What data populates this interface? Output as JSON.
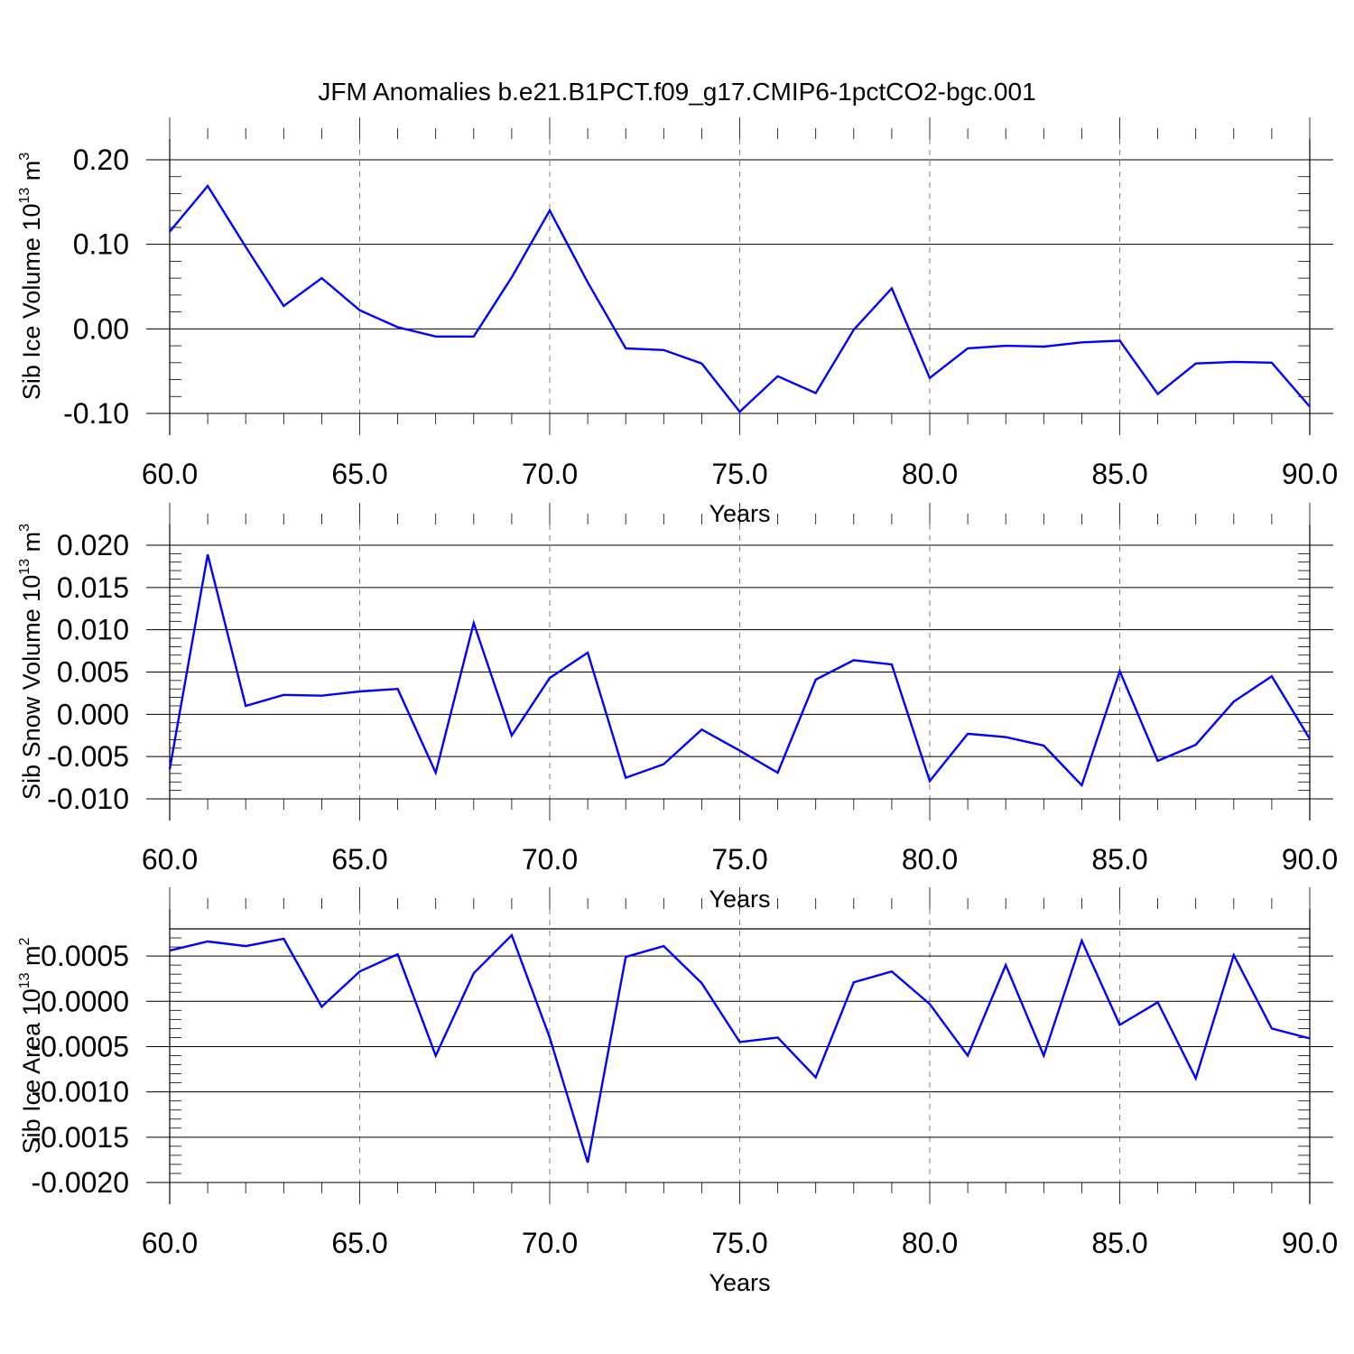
{
  "page": {
    "title": "JFM Anomalies b.e21.B1PCT.f09_g17.CMIP6-1pctCO2-bgc.001"
  },
  "colors": {
    "line": "#0000ff",
    "axis": "#000000",
    "grid": "#808080"
  },
  "chart_data": [
    {
      "type": "line",
      "title": "JFM Anomalies b.e21.B1PCT.f09_g17.CMIP6-1pctCO2-bgc.001",
      "xlabel": "Years",
      "ylabel": {
        "prefix": "Sib Ice Volume 10",
        "exp": "13",
        "unit": " m",
        "unit_exp": "3"
      },
      "xlim": [
        60,
        90
      ],
      "ylim": [
        -0.1,
        0.2
      ],
      "xticks": [
        60,
        65,
        70,
        75,
        80,
        85,
        90
      ],
      "xtick_labels": [
        "60.0",
        "65.0",
        "70.0",
        "75.0",
        "80.0",
        "85.0",
        "90.0"
      ],
      "yticks": [
        -0.1,
        0.0,
        0.1,
        0.2
      ],
      "ytick_labels": [
        "-0.10",
        "0.00",
        "0.10",
        "0.20"
      ],
      "grid": "vertical dashed at major x ticks",
      "series": [
        {
          "x": [
            60,
            61,
            62,
            63,
            64,
            65,
            66,
            67,
            68,
            69,
            70,
            71,
            72,
            73,
            74,
            75,
            76,
            77,
            78,
            79,
            80,
            81,
            82,
            83,
            84,
            85,
            86,
            87,
            88,
            89,
            90
          ],
          "values": [
            0.115,
            0.169,
            0.097,
            0.027,
            0.06,
            0.022,
            0.002,
            -0.009,
            -0.009,
            0.061,
            0.14,
            0.055,
            -0.023,
            -0.025,
            -0.041,
            -0.098,
            -0.056,
            -0.076,
            -0.001,
            0.048,
            -0.058,
            -0.023,
            -0.02,
            -0.021,
            -0.016,
            -0.014,
            -0.077,
            -0.041,
            -0.039,
            -0.04,
            -0.092
          ]
        }
      ]
    },
    {
      "type": "line",
      "xlabel": "Years",
      "ylabel": {
        "prefix": "Sib Snow Volume 10",
        "exp": "13",
        "unit": " m",
        "unit_exp": "3"
      },
      "xlim": [
        60,
        90
      ],
      "ylim": [
        -0.01,
        0.02
      ],
      "xticks": [
        60,
        65,
        70,
        75,
        80,
        85,
        90
      ],
      "xtick_labels": [
        "60.0",
        "65.0",
        "70.0",
        "75.0",
        "80.0",
        "85.0",
        "90.0"
      ],
      "yticks": [
        -0.01,
        -0.005,
        0.0,
        0.005,
        0.01,
        0.015,
        0.02
      ],
      "ytick_labels": [
        "-0.010",
        "-0.005",
        "0.000",
        "0.005",
        "0.010",
        "0.015",
        "0.020"
      ],
      "grid": "vertical dashed at major x ticks",
      "series": [
        {
          "x": [
            60,
            61,
            62,
            63,
            64,
            65,
            66,
            67,
            68,
            69,
            70,
            71,
            72,
            73,
            74,
            75,
            76,
            77,
            78,
            79,
            80,
            81,
            82,
            83,
            84,
            85,
            86,
            87,
            88,
            89,
            90
          ],
          "values": [
            -0.0065,
            0.0189,
            0.001,
            0.0023,
            0.0022,
            0.0027,
            0.003,
            -0.0069,
            0.0108,
            -0.0025,
            0.0043,
            0.0073,
            -0.0075,
            -0.0059,
            -0.0018,
            -0.0043,
            -0.0069,
            0.0041,
            0.0064,
            0.0059,
            -0.0079,
            -0.0023,
            -0.0027,
            -0.0037,
            -0.0084,
            0.0051,
            -0.0055,
            -0.0036,
            0.0015,
            0.0045,
            -0.0029
          ]
        }
      ]
    },
    {
      "type": "line",
      "xlabel": "Years",
      "ylabel": {
        "prefix": "Sib Ice Area 10",
        "exp": "13",
        "unit": " m",
        "unit_exp": "2"
      },
      "xlim": [
        60,
        90
      ],
      "ylim": [
        -0.002,
        0.0008
      ],
      "xticks": [
        60,
        65,
        70,
        75,
        80,
        85,
        90
      ],
      "xtick_labels": [
        "60.0",
        "65.0",
        "70.0",
        "75.0",
        "80.0",
        "85.0",
        "90.0"
      ],
      "yticks": [
        -0.002,
        -0.0015,
        -0.001,
        -0.0005,
        0.0,
        0.0005
      ],
      "ytick_labels": [
        "-0.0020",
        "-0.0015",
        "-0.0010",
        "-0.0005",
        "0.0000",
        "0.0005"
      ],
      "grid": "vertical dashed at major x ticks",
      "series": [
        {
          "x": [
            60,
            61,
            62,
            63,
            64,
            65,
            66,
            67,
            68,
            69,
            70,
            71,
            72,
            73,
            74,
            75,
            76,
            77,
            78,
            79,
            80,
            81,
            82,
            83,
            84,
            85,
            86,
            87,
            88,
            89,
            90
          ],
          "values": [
            0.00056,
            0.00066,
            0.00061,
            0.00069,
            -6e-05,
            0.00033,
            0.00052,
            -0.0006,
            0.00031,
            0.00073,
            -0.0004,
            -0.00178,
            0.00049,
            0.00061,
            0.0002,
            -0.00045,
            -0.0004,
            -0.00084,
            0.00021,
            0.00033,
            -3e-05,
            -0.0006,
            0.0004,
            -0.0006,
            0.00067,
            -0.00026,
            -1e-05,
            -0.00085,
            0.00051,
            -0.0003,
            -0.00041
          ]
        }
      ]
    }
  ]
}
